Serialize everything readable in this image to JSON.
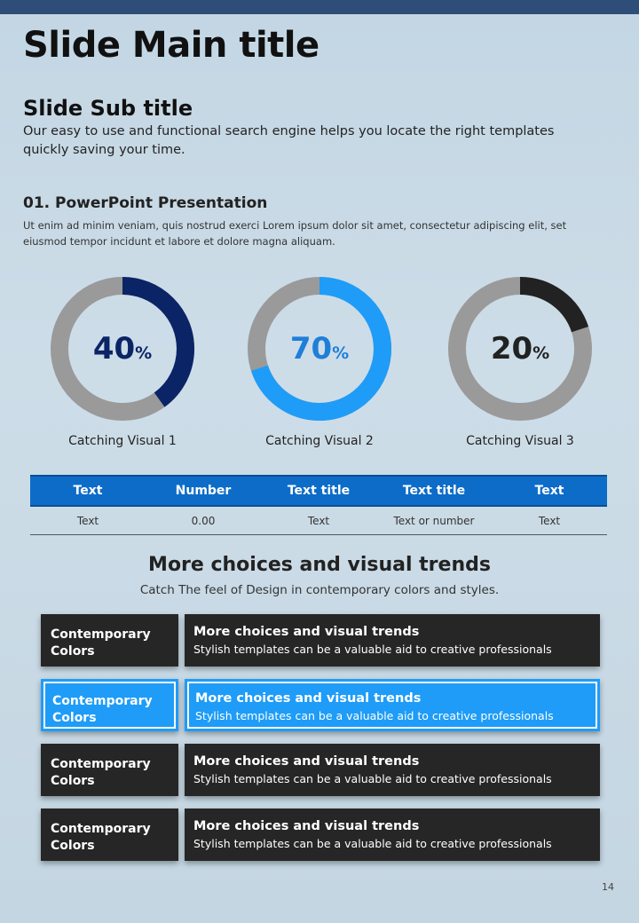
{
  "title": "Slide Main title",
  "subtitle": "Slide Sub title",
  "subtitle_desc": "Our easy to use and functional search engine helps you locate the right templates quickly saving your time.",
  "section": {
    "title": "01. PowerPoint Presentation",
    "desc": "Ut enim ad minim veniam, quis nostrud exerci  Lorem ipsum dolor sit amet, consectetur adipiscing elit, set eiusmod tempor incidunt et labore et dolore magna aliquam."
  },
  "donuts": [
    {
      "value": "40",
      "symbol": "%",
      "label": "Catching Visual 1",
      "fraction": 0.4,
      "color": "#0a2466",
      "track": "#9a9a9a"
    },
    {
      "value": "70",
      "symbol": "%",
      "label": "Catching Visual 2",
      "fraction": 0.7,
      "color": "#1e9cf8",
      "track": "#9a9a9a"
    },
    {
      "value": "20",
      "symbol": "%",
      "label": "Catching Visual 3",
      "fraction": 0.2,
      "color": "#222222",
      "track": "#9a9a9a"
    }
  ],
  "table": {
    "headers": [
      "Text",
      "Number",
      "Text title",
      "Text title",
      "Text"
    ],
    "rows": [
      [
        "Text",
        "0.00",
        "Text",
        "Text or number",
        "Text"
      ]
    ]
  },
  "more": {
    "title": "More choices and visual trends",
    "subtitle": "Catch The feel of Design in contemporary colors and styles."
  },
  "rows": [
    {
      "left": "Contemporary Colors",
      "head": "More choices and visual trends",
      "desc": "Stylish templates can be a valuable aid to creative professionals"
    },
    {
      "left": "Contemporary Colors",
      "head": "More choices and visual trends",
      "desc": "Stylish templates can be a valuable aid to creative professionals"
    },
    {
      "left": "Contemporary Colors",
      "head": "More choices and visual trends",
      "desc": "Stylish templates can be a valuable aid to creative professionals"
    },
    {
      "left": "Contemporary Colors",
      "head": "More choices and visual trends",
      "desc": "Stylish templates can be a valuable aid to creative professionals"
    }
  ],
  "colors": {
    "accent_blue": "#1e9cf8",
    "header_blue": "#0d6cc8",
    "dark_box": "#262626"
  },
  "page_number": "14"
}
